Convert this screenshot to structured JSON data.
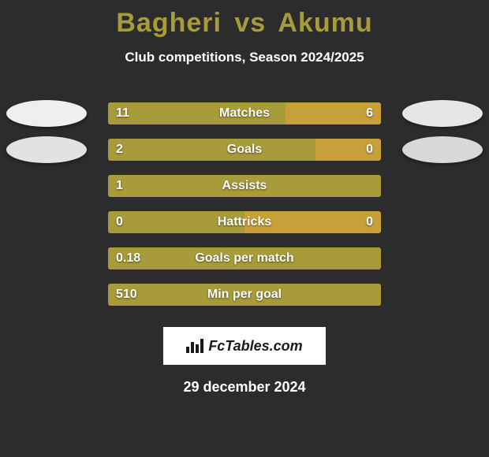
{
  "colors": {
    "background": "#2c2c2c",
    "title": "#a79b3a",
    "text": "#ffffff",
    "logo_bg": "#ffffff",
    "logo_text": "#1a1a1a",
    "ellipse_left_1": "#efefef",
    "ellipse_right_1": "#e6e6e6",
    "ellipse_left_2": "#e2e2e2",
    "ellipse_right_2": "#d8d8d8"
  },
  "title": {
    "player1": "Bagheri",
    "vs": "vs",
    "player2": "Akumu",
    "color": "#a79b3a",
    "fontsize": 34
  },
  "subtitle": "Club competitions, Season 2024/2025",
  "bars": {
    "track_width": 346,
    "track_height": 28,
    "left_color": "#a79b3a",
    "right_color": "#c7a03a",
    "label_fontsize": 16
  },
  "rows": [
    {
      "label": "Matches",
      "left_val": "11",
      "right_val": "6",
      "left_pct": 65,
      "right_pct": 35,
      "show_right": true,
      "ellipses": true
    },
    {
      "label": "Goals",
      "left_val": "2",
      "right_val": "0",
      "left_pct": 76,
      "right_pct": 24,
      "show_right": true,
      "ellipses": true
    },
    {
      "label": "Assists",
      "left_val": "1",
      "right_val": "",
      "left_pct": 100,
      "right_pct": 0,
      "show_right": false,
      "ellipses": false
    },
    {
      "label": "Hattricks",
      "left_val": "0",
      "right_val": "0",
      "left_pct": 50,
      "right_pct": 50,
      "show_right": true,
      "ellipses": false
    },
    {
      "label": "Goals per match",
      "left_val": "0.18",
      "right_val": "",
      "left_pct": 100,
      "right_pct": 0,
      "show_right": false,
      "ellipses": false
    },
    {
      "label": "Min per goal",
      "left_val": "510",
      "right_val": "",
      "left_pct": 100,
      "right_pct": 0,
      "show_right": false,
      "ellipses": false
    }
  ],
  "logo": {
    "text": "FcTables.com"
  },
  "date": "29 december 2024"
}
